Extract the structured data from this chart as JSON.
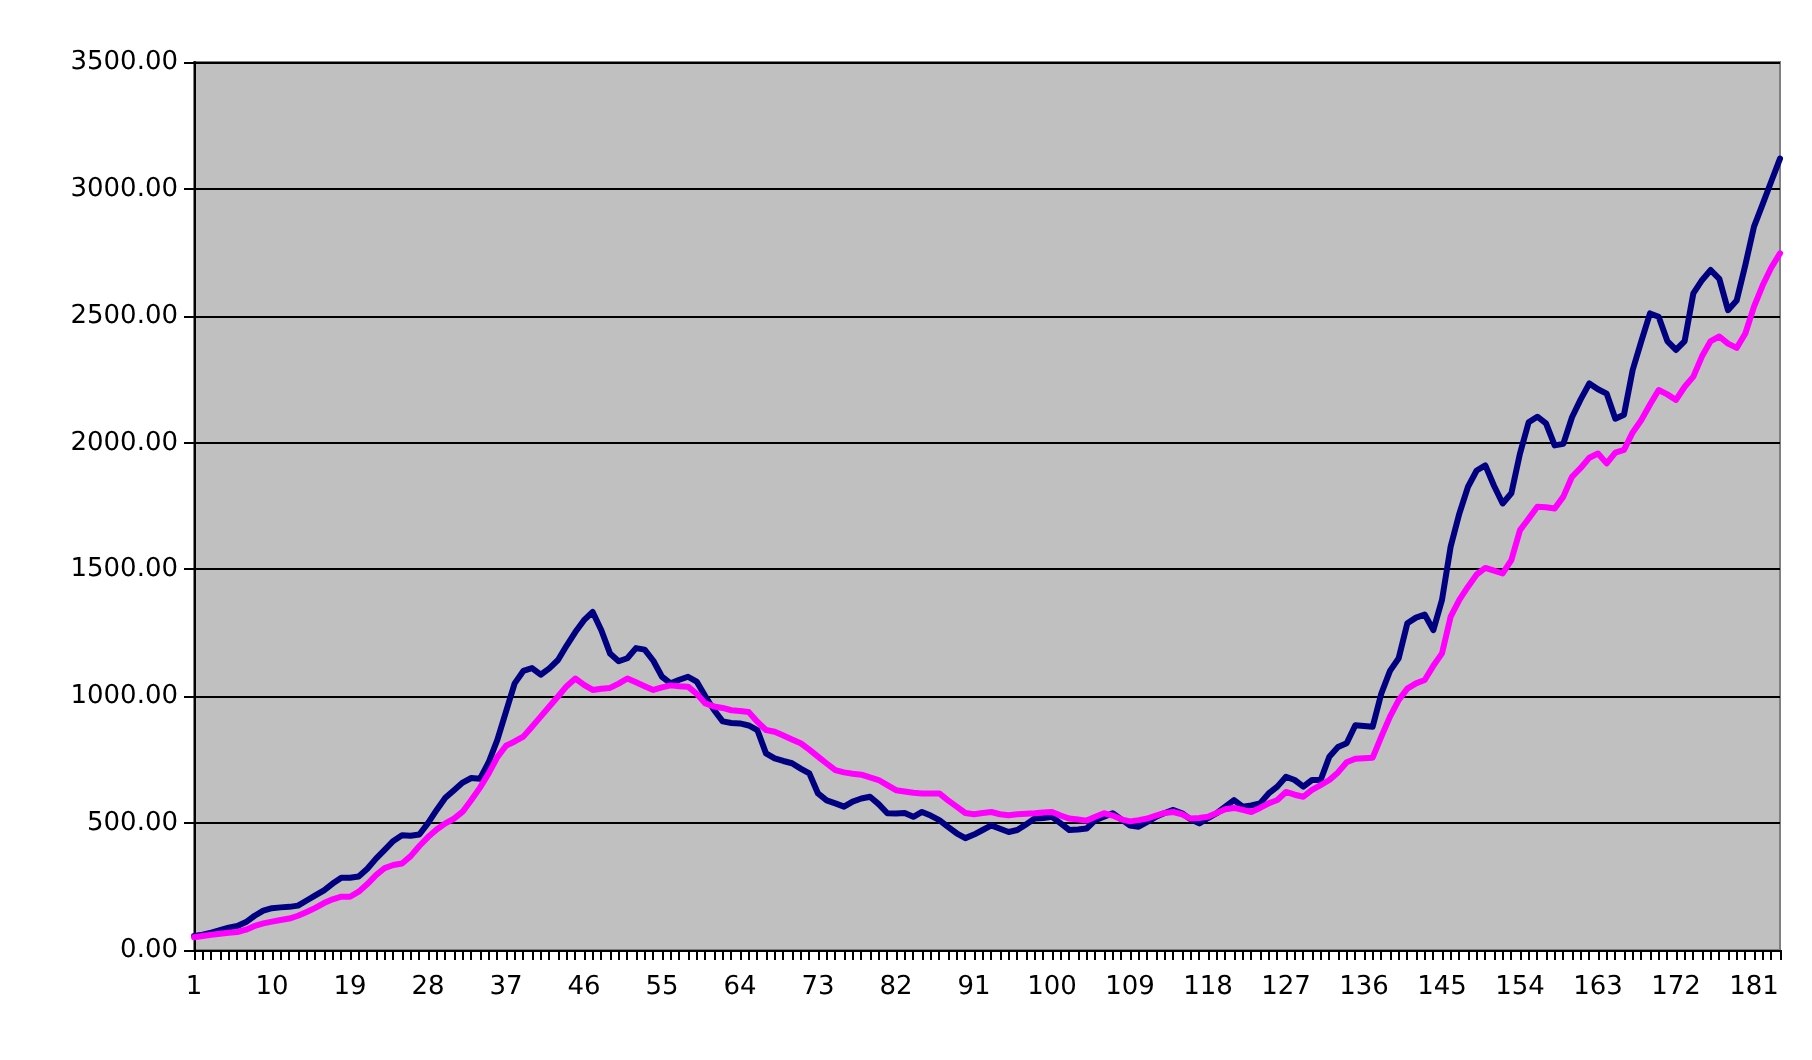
{
  "chart_data": {
    "type": "line",
    "marker": "none",
    "line_style": "solid",
    "grid": "y",
    "categories": [
      "1",
      null,
      null,
      null,
      null,
      null,
      null,
      null,
      null,
      "10",
      null,
      null,
      null,
      null,
      null,
      null,
      null,
      null,
      "19",
      null,
      null,
      null,
      null,
      null,
      null,
      null,
      null,
      "28",
      null,
      null,
      null,
      null,
      null,
      null,
      null,
      null,
      "37",
      null,
      null,
      null,
      null,
      null,
      null,
      null,
      null,
      "46",
      null,
      null,
      null,
      null,
      null,
      null,
      null,
      null,
      "55",
      null,
      null,
      null,
      null,
      null,
      null,
      null,
      null,
      "64",
      null,
      null,
      null,
      null,
      null,
      null,
      null,
      null,
      "73",
      null,
      null,
      null,
      null,
      null,
      null,
      null,
      null,
      "82",
      null,
      null,
      null,
      null,
      null,
      null,
      null,
      null,
      "91",
      null,
      null,
      null,
      null,
      null,
      null,
      null,
      null,
      "100",
      null,
      null,
      null,
      null,
      null,
      null,
      null,
      null,
      "109",
      null,
      null,
      null,
      null,
      null,
      null,
      null,
      null,
      "118",
      null,
      null,
      null,
      null,
      null,
      null,
      null,
      null,
      "127",
      null,
      null,
      null,
      null,
      null,
      null,
      null,
      null,
      "136",
      null,
      null,
      null,
      null,
      null,
      null,
      null,
      null,
      "145",
      null,
      null,
      null,
      null,
      null,
      null,
      null,
      null,
      "154",
      null,
      null,
      null,
      null,
      null,
      null,
      null,
      null,
      "163",
      null,
      null,
      null,
      null,
      null,
      null,
      null,
      null,
      "172",
      null,
      null,
      null,
      null,
      null,
      null,
      null,
      null,
      "181",
      null,
      null,
      null
    ],
    "ylim": [
      0,
      3500
    ],
    "yticks": [
      {
        "value": 0,
        "label": "0.00"
      },
      {
        "value": 500,
        "label": "500.00"
      },
      {
        "value": 1000,
        "label": "1000.00"
      },
      {
        "value": 1500,
        "label": "1500.00"
      },
      {
        "value": 2000,
        "label": "2000.00"
      },
      {
        "value": 2500,
        "label": "2500.00"
      },
      {
        "value": 3000,
        "label": "3000.00"
      },
      {
        "value": 3500,
        "label": "3500.00"
      }
    ],
    "series": [
      {
        "color": "#000080",
        "values": [
          55,
          60,
          68,
          78,
          88,
          95,
          110,
          135,
          155,
          165,
          168,
          170,
          175,
          195,
          215,
          235,
          262,
          285,
          285,
          290,
          320,
          360,
          395,
          430,
          452,
          450,
          455,
          500,
          552,
          600,
          630,
          660,
          678,
          675,
          740,
          828,
          940,
          1051,
          1100,
          1111,
          1085,
          1110,
          1143,
          1200,
          1253,
          1300,
          1332,
          1260,
          1169,
          1138,
          1150,
          1190,
          1184,
          1140,
          1077,
          1051,
          1065,
          1077,
          1058,
          1000,
          946,
          901,
          895,
          893,
          885,
          867,
          775,
          755,
          745,
          736,
          715,
          696,
          617,
          590,
          578,
          565,
          585,
          597,
          604,
          575,
          539,
          538,
          540,
          525,
          544,
          530,
          512,
          485,
          460,
          441,
          455,
          473,
          491,
          478,
          465,
          473,
          495,
          518,
          520,
          525,
          499,
          473,
          475,
          479,
          512,
          525,
          539,
          515,
          491,
          486,
          505,
          525,
          540,
          552,
          539,
          515,
          499,
          520,
          539,
          565,
          591,
          565,
          570,
          578,
          617,
          644,
          683,
          670,
          644,
          670,
          670,
          762,
          800,
          815,
          886,
          883,
          880,
          1011,
          1100,
          1150,
          1288,
          1310,
          1322,
          1261,
          1380,
          1590,
          1720,
          1826,
          1890,
          1910,
          1830,
          1760,
          1800,
          1957,
          2080,
          2102,
          2076,
          1989,
          1995,
          2100,
          2170,
          2233,
          2210,
          2193,
          2094,
          2110,
          2286,
          2400,
          2509,
          2496,
          2400,
          2365,
          2400,
          2588,
          2640,
          2680,
          2645,
          2522,
          2560,
          2700,
          2851,
          2940,
          3030,
          3119
        ]
      },
      {
        "color": "#ff00ff",
        "values": [
          50,
          55,
          60,
          64,
          68,
          71,
          80,
          95,
          105,
          112,
          118,
          124,
          135,
          150,
          166,
          185,
          200,
          210,
          210,
          230,
          260,
          295,
          323,
          335,
          341,
          370,
          410,
          445,
          475,
          499,
          518,
          545,
          591,
          640,
          696,
          760,
          805,
          822,
          841,
          880,
          920,
          960,
          999,
          1040,
          1070,
          1045,
          1025,
          1030,
          1033,
          1050,
          1070,
          1055,
          1040,
          1025,
          1035,
          1043,
          1040,
          1038,
          1010,
          972,
          960,
          954,
          945,
          942,
          938,
          900,
          867,
          860,
          845,
          830,
          815,
          790,
          762,
          735,
          709,
          700,
          695,
          691,
          680,
          670,
          650,
          630,
          625,
          620,
          617,
          617,
          617,
          590,
          565,
          540,
          535,
          540,
          544,
          535,
          531,
          535,
          537,
          539,
          542,
          544,
          530,
          518,
          514,
          510,
          525,
          539,
          530,
          515,
          507,
          512,
          518,
          530,
          540,
          544,
          535,
          518,
          520,
          525,
          540,
          555,
          560,
          552,
          544,
          560,
          578,
          591,
          623,
          612,
          604,
          631,
          650,
          670,
          700,
          740,
          754,
          756,
          758,
          841,
          920,
          985,
          1030,
          1051,
          1064,
          1120,
          1169,
          1314,
          1380,
          1432,
          1480,
          1506,
          1495,
          1484,
          1537,
          1655,
          1700,
          1747,
          1745,
          1740,
          1787,
          1865,
          1900,
          1940,
          1957,
          1918,
          1960,
          1971,
          2040,
          2089,
          2150,
          2207,
          2190,
          2168,
          2220,
          2260,
          2340,
          2400,
          2418,
          2390,
          2373,
          2430,
          2536,
          2620,
          2690,
          2746
        ]
      }
    ]
  }
}
